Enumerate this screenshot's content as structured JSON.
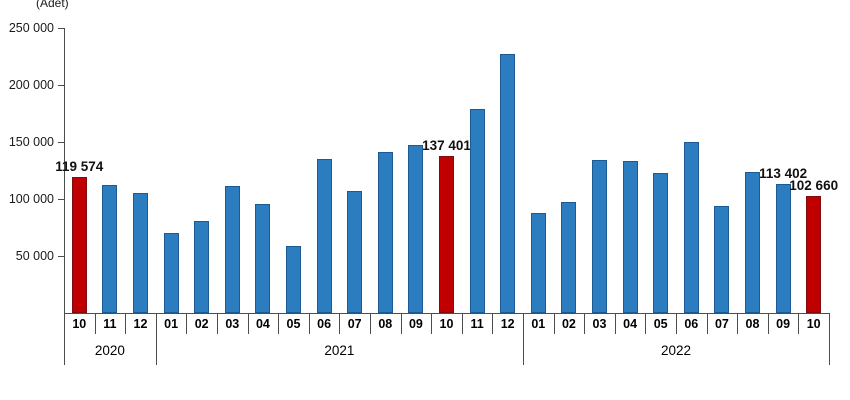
{
  "chart_data": {
    "type": "bar",
    "unit_label": "(Adet)",
    "ylim": [
      0,
      250000
    ],
    "grid": false,
    "legend": null,
    "y_ticks": [
      {
        "label": "250 000",
        "value": 250000
      },
      {
        "label": "200 000",
        "value": 200000
      },
      {
        "label": "150 000",
        "value": 150000
      },
      {
        "label": "100 000",
        "value": 100000
      },
      {
        "label": "50 000",
        "value": 50000
      }
    ],
    "colors": {
      "bar": "#2C7CC0",
      "bar_border": "#1B5A93",
      "highlight": "#C00000",
      "highlight_border": "#7E0E0E",
      "axis": "#4d4d4d",
      "text": "#111111"
    },
    "year_groups": [
      {
        "year": "2020",
        "months": [
          "10",
          "11",
          "12"
        ]
      },
      {
        "year": "2021",
        "months": [
          "01",
          "02",
          "03",
          "04",
          "05",
          "06",
          "07",
          "08",
          "09",
          "10",
          "11",
          "12"
        ]
      },
      {
        "year": "2022",
        "months": [
          "01",
          "02",
          "03",
          "04",
          "05",
          "06",
          "07",
          "08",
          "09",
          "10"
        ]
      }
    ],
    "bars": [
      {
        "year": "2020",
        "month": "10",
        "value": 119574,
        "highlight": true,
        "label": "119 574"
      },
      {
        "year": "2020",
        "month": "11",
        "value": 112000,
        "highlight": false,
        "label": null
      },
      {
        "year": "2020",
        "month": "12",
        "value": 105000,
        "highlight": false,
        "label": null
      },
      {
        "year": "2021",
        "month": "01",
        "value": 70000,
        "highlight": false,
        "label": null
      },
      {
        "year": "2021",
        "month": "02",
        "value": 81000,
        "highlight": false,
        "label": null
      },
      {
        "year": "2021",
        "month": "03",
        "value": 111000,
        "highlight": false,
        "label": null
      },
      {
        "year": "2021",
        "month": "04",
        "value": 96000,
        "highlight": false,
        "label": null
      },
      {
        "year": "2021",
        "month": "05",
        "value": 59000,
        "highlight": false,
        "label": null
      },
      {
        "year": "2021",
        "month": "06",
        "value": 135000,
        "highlight": false,
        "label": null
      },
      {
        "year": "2021",
        "month": "07",
        "value": 107000,
        "highlight": false,
        "label": null
      },
      {
        "year": "2021",
        "month": "08",
        "value": 141000,
        "highlight": false,
        "label": null
      },
      {
        "year": "2021",
        "month": "09",
        "value": 147000,
        "highlight": false,
        "label": null
      },
      {
        "year": "2021",
        "month": "10",
        "value": 137401,
        "highlight": true,
        "label": "137 401"
      },
      {
        "year": "2021",
        "month": "11",
        "value": 179000,
        "highlight": false,
        "label": null
      },
      {
        "year": "2021",
        "month": "12",
        "value": 227000,
        "highlight": false,
        "label": null
      },
      {
        "year": "2022",
        "month": "01",
        "value": 88000,
        "highlight": false,
        "label": null
      },
      {
        "year": "2022",
        "month": "02",
        "value": 97000,
        "highlight": false,
        "label": null
      },
      {
        "year": "2022",
        "month": "03",
        "value": 134000,
        "highlight": false,
        "label": null
      },
      {
        "year": "2022",
        "month": "04",
        "value": 133000,
        "highlight": false,
        "label": null
      },
      {
        "year": "2022",
        "month": "05",
        "value": 123000,
        "highlight": false,
        "label": null
      },
      {
        "year": "2022",
        "month": "06",
        "value": 150000,
        "highlight": false,
        "label": null
      },
      {
        "year": "2022",
        "month": "07",
        "value": 94000,
        "highlight": false,
        "label": null
      },
      {
        "year": "2022",
        "month": "08",
        "value": 124000,
        "highlight": false,
        "label": null
      },
      {
        "year": "2022",
        "month": "09",
        "value": 113402,
        "highlight": false,
        "label": "113 402"
      },
      {
        "year": "2022",
        "month": "10",
        "value": 102660,
        "highlight": true,
        "label": "102 660"
      }
    ]
  }
}
